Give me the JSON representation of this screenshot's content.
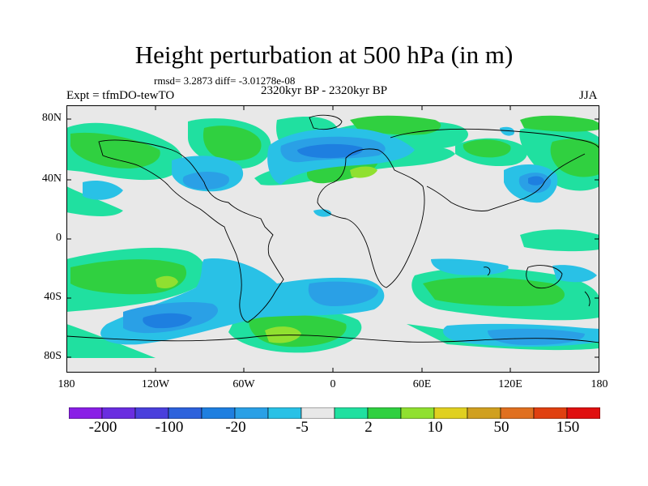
{
  "title": "Height perturbation at 500 hPa (in m)",
  "stats": "rmsd= 3.2873 diff= -3.01278e-08",
  "experiment": "Expt = tfmDO-tewTO",
  "period": "2320kyr BP - 2320kyr BP",
  "season": "JJA",
  "lat_labels": [
    "80N",
    "40N",
    "0",
    "40S",
    "80S"
  ],
  "lon_labels": [
    "180",
    "120W",
    "60W",
    "0",
    "60E",
    "120E",
    "180"
  ],
  "colorbar": {
    "labels": [
      "-200",
      "-100",
      "-20",
      "-5",
      "2",
      "10",
      "50",
      "150"
    ],
    "colors": [
      "#8a1fe6",
      "#6a2de0",
      "#4a3fdc",
      "#2d62dc",
      "#1e7fe0",
      "#2aa0e6",
      "#29c1e6",
      "#e8e8e8",
      "#20e0a0",
      "#30d040",
      "#90e030",
      "#e0d020",
      "#d0a020",
      "#e07020",
      "#e04010",
      "#e01010"
    ]
  },
  "map_colors": {
    "ocean": "#e8e8e8",
    "cyan": "#29c1e6",
    "lightblue": "#2aa0e6",
    "blue": "#1e7fe0",
    "teal": "#20e0a0",
    "green": "#30d040",
    "yellowgreen": "#90e030"
  }
}
